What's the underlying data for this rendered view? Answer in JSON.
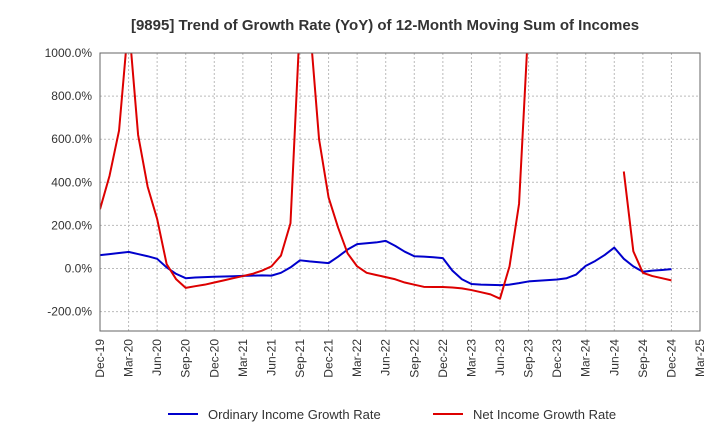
{
  "chart_data": {
    "type": "line",
    "title": "[9895]  Trend of Growth Rate (YoY) of 12-Month Moving Sum of Incomes",
    "xlabel": "",
    "ylabel": "",
    "ylim": [
      -290,
      1000
    ],
    "y_ticks": [
      -200,
      0,
      200,
      400,
      600,
      800,
      1000
    ],
    "y_tick_labels": [
      "-200.0%",
      "0.0%",
      "200.0%",
      "400.0%",
      "600.0%",
      "800.0%",
      "1000.0%"
    ],
    "x_tick_labels": [
      "Dec-19",
      "Mar-20",
      "Jun-20",
      "Sep-20",
      "Dec-20",
      "Mar-21",
      "Jun-21",
      "Sep-21",
      "Dec-21",
      "Mar-22",
      "Jun-22",
      "Sep-22",
      "Dec-22",
      "Mar-23",
      "Jun-23",
      "Sep-23",
      "Dec-23",
      "Mar-24",
      "Jun-24",
      "Sep-24",
      "Dec-24",
      "Mar-25"
    ],
    "grid": true,
    "legend_position": "bottom",
    "x": [
      "2019-12",
      "2020-01",
      "2020-02",
      "2020-03",
      "2020-04",
      "2020-05",
      "2020-06",
      "2020-07",
      "2020-08",
      "2020-09",
      "2020-10",
      "2020-11",
      "2020-12",
      "2021-01",
      "2021-02",
      "2021-03",
      "2021-04",
      "2021-05",
      "2021-06",
      "2021-07",
      "2021-08",
      "2021-09",
      "2021-10",
      "2021-11",
      "2021-12",
      "2022-01",
      "2022-02",
      "2022-03",
      "2022-04",
      "2022-05",
      "2022-06",
      "2022-07",
      "2022-08",
      "2022-09",
      "2022-10",
      "2022-11",
      "2022-12",
      "2023-01",
      "2023-02",
      "2023-03",
      "2023-04",
      "2023-05",
      "2023-06",
      "2023-07",
      "2023-08",
      "2023-09",
      "2023-10",
      "2023-11",
      "2023-12",
      "2024-01",
      "2024-02",
      "2024-03",
      "2024-04",
      "2024-05",
      "2024-06",
      "2024-07",
      "2024-08",
      "2024-09",
      "2024-10",
      "2024-11",
      "2024-12",
      "2025-01",
      "2025-02",
      "2025-03"
    ],
    "series": [
      {
        "name": "Ordinary Income Growth Rate",
        "color": "#0000cc",
        "values": [
          62,
          67,
          72,
          77,
          67,
          57,
          45,
          5,
          -25,
          -45,
          -42,
          -40,
          -38,
          -37,
          -36,
          -34,
          -33,
          -32,
          -33,
          -20,
          5,
          38,
          33,
          29,
          25,
          55,
          88,
          113,
          117,
          121,
          128,
          105,
          78,
          57,
          55,
          52,
          48,
          -10,
          -50,
          -72,
          -75,
          -76,
          -77,
          -75,
          -68,
          -60,
          -57,
          -54,
          -51,
          -45,
          -28,
          12,
          35,
          63,
          97,
          45,
          10,
          -15,
          -10,
          -7,
          -3,
          null,
          null,
          null
        ]
      },
      {
        "name": "Net Income Growth Rate",
        "color": "#dd0000",
        "values": [
          275,
          430,
          640,
          1150,
          620,
          380,
          230,
          20,
          -50,
          -90,
          -82,
          -75,
          -65,
          -55,
          -45,
          -35,
          -25,
          -10,
          10,
          60,
          210,
          1150,
          1150,
          600,
          330,
          190,
          70,
          10,
          -20,
          -30,
          -40,
          -50,
          -65,
          -75,
          -85,
          -86,
          -86,
          -88,
          -92,
          -100,
          -110,
          -120,
          -140,
          10,
          300,
          1150,
          null,
          null,
          null,
          null,
          null,
          null,
          null,
          null,
          null,
          450,
          80,
          -20,
          -35,
          -45,
          -55,
          null,
          null,
          null
        ]
      }
    ]
  }
}
